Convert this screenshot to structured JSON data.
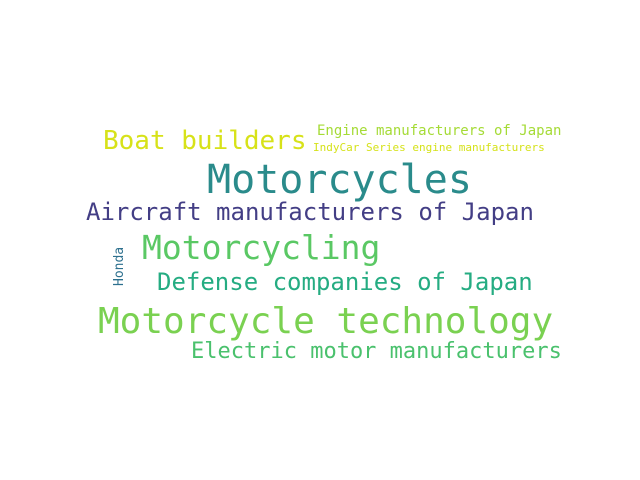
{
  "words": [
    {
      "text": "Boat builders",
      "color": "#d7e219"
    },
    {
      "text": "Engine manufacturers of Japan",
      "color": "#a5db36"
    },
    {
      "text": "IndyCar Series engine manufacturers",
      "color": "#d5e21a"
    },
    {
      "text": "Motorcycles",
      "color": "#2a8b8b"
    },
    {
      "text": "Aircraft manufacturers of Japan",
      "color": "#433e85"
    },
    {
      "text": "Motorcycling",
      "color": "#5ac864"
    },
    {
      "text": "Defense companies of Japan",
      "color": "#25ac82"
    },
    {
      "text": "Honda",
      "color": "#2d708e"
    },
    {
      "text": "Motorcycle technology",
      "color": "#7ad151"
    },
    {
      "text": "Electric motor manufacturers",
      "color": "#4ac16d"
    }
  ]
}
